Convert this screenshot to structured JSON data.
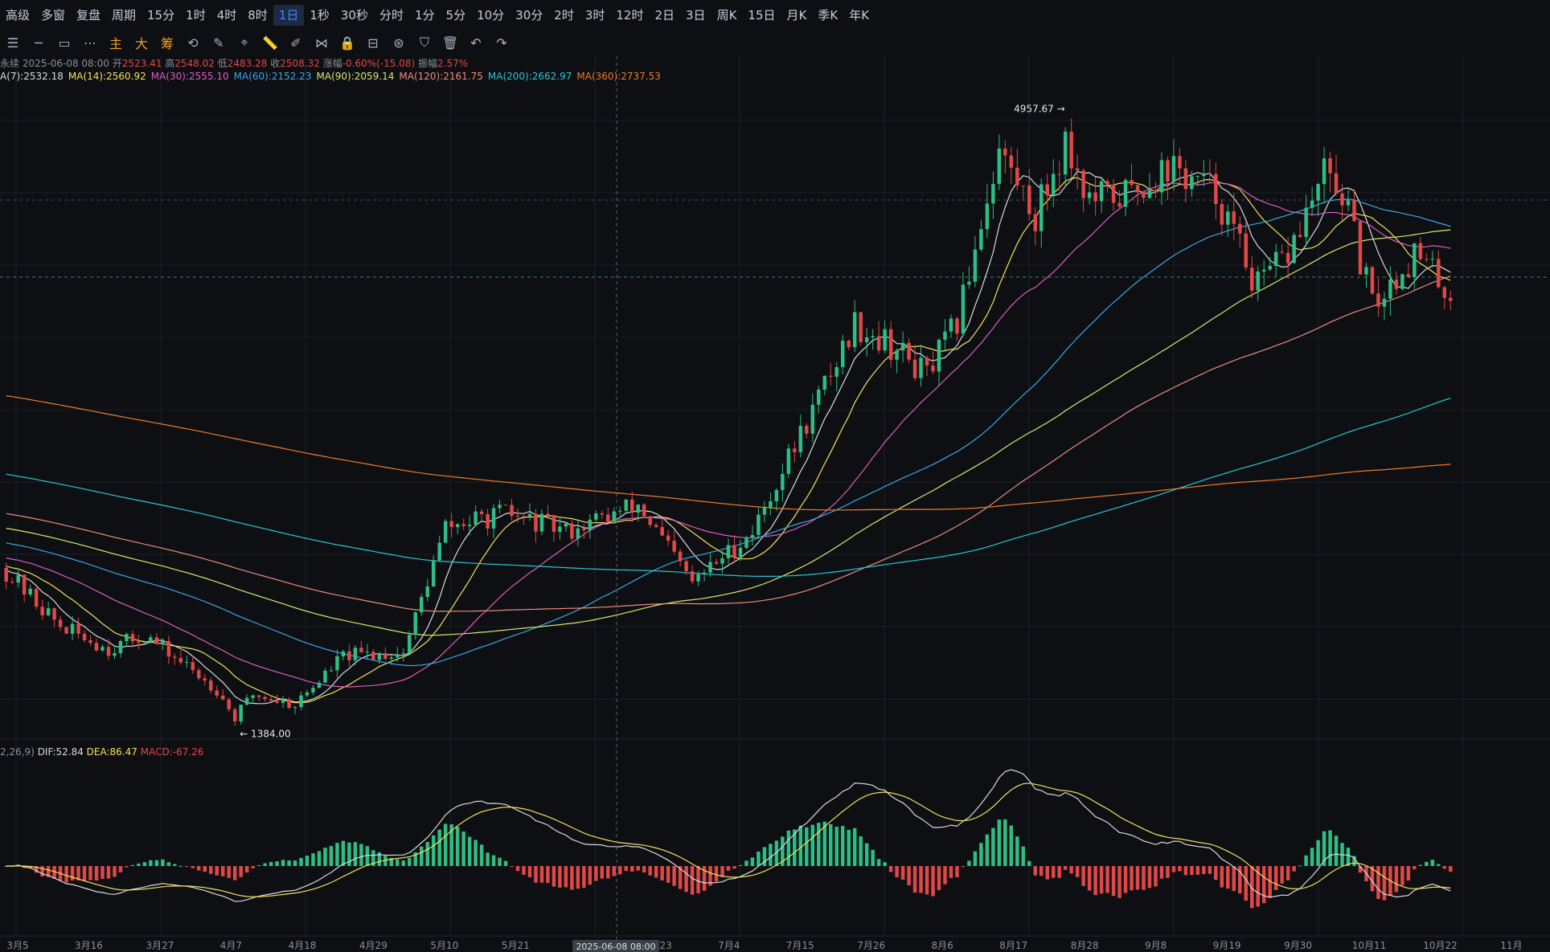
{
  "toolbar": {
    "items": [
      {
        "label": "高级"
      },
      {
        "label": "多窗"
      },
      {
        "label": "复盘"
      },
      {
        "label": "周期"
      },
      {
        "label": "15分"
      },
      {
        "label": "1时"
      },
      {
        "label": "4时"
      },
      {
        "label": "8时"
      },
      {
        "label": "1日",
        "active": true
      },
      {
        "label": "1秒"
      },
      {
        "label": "30秒"
      },
      {
        "label": "分时"
      },
      {
        "label": "1分"
      },
      {
        "label": "5分"
      },
      {
        "label": "10分"
      },
      {
        "label": "30分"
      },
      {
        "label": "2时"
      },
      {
        "label": "3时"
      },
      {
        "label": "12时"
      },
      {
        "label": "2日"
      },
      {
        "label": "3日"
      },
      {
        "label": "周K"
      },
      {
        "label": "15日"
      },
      {
        "label": "月K"
      },
      {
        "label": "季K"
      },
      {
        "label": "年K"
      }
    ],
    "drawing_tools": [
      "menu-icon",
      "line-icon",
      "rect-icon",
      "more-icon",
      "主",
      "大",
      "筹",
      "indicator-icon",
      "brush-icon",
      "crosshair-icon",
      "ruler-icon",
      "pen-icon",
      "measure-icon",
      "lock-icon",
      "screenshot-icon",
      "magnet-icon",
      "filter-icon",
      "trash-icon",
      "undo-icon",
      "redo-icon"
    ]
  },
  "ohlc_info": {
    "prefix": "永续",
    "date": "2025-06-08 08:00",
    "open_label": "开",
    "open": "2523.41",
    "high_label": "高",
    "high": "2548.02",
    "low_label": "低",
    "low": "2483.28",
    "close_label": "收",
    "close": "2508.32",
    "change_label": "涨幅",
    "change": "-0.60%(-15.08)",
    "amp_label": "振幅",
    "amp": "2.57%"
  },
  "ma_info": [
    {
      "label": "A(7):2532.18",
      "color": "#d9d9d9"
    },
    {
      "label": "MA(14):2560.92",
      "color": "#f5e15a"
    },
    {
      "label": "MA(30):2555.10",
      "color": "#e05cc4"
    },
    {
      "label": "MA(60):2152.23",
      "color": "#3aa8e8"
    },
    {
      "label": "MA(90):2059.14",
      "color": "#d8e870"
    },
    {
      "label": "MA(120):2161.75",
      "color": "#f08a7e"
    },
    {
      "label": "MA(200):2662.97",
      "color": "#28c8d8"
    },
    {
      "label": "MA(360):2737.53",
      "color": "#f07a2a"
    }
  ],
  "macd_info": {
    "prefix": "2,26,9)",
    "dif": "DIF:52.84",
    "dif_color": "#d9d9d9",
    "dea": "DEA:86.47",
    "dea_color": "#f5e15a",
    "macd": "MACD:-67.26",
    "macd_color": "#e04848"
  },
  "annotations": {
    "high": "4957.67",
    "low": "1384.00"
  },
  "crosshair_date": "2025-06-08 08:00",
  "chart_data": {
    "type": "candlestick",
    "x_axis_ticks": [
      "3月5",
      "3月16",
      "3月27",
      "4月7",
      "4月18",
      "4月29",
      "5月10",
      "5月21",
      "6月",
      "6月23",
      "7月4",
      "7月15",
      "7月26",
      "8月6",
      "8月17",
      "8月28",
      "9月8",
      "9月19",
      "9月30",
      "10月11",
      "10月22",
      "11月"
    ],
    "price_range": [
      1300,
      5100
    ],
    "colors": {
      "up": "#2ebd85",
      "down": "#e04848"
    },
    "segments": [
      {
        "days": 10,
        "from": 2300,
        "to": 1950
      },
      {
        "days": 8,
        "from": 1950,
        "to": 1820
      },
      {
        "days": 6,
        "from": 1820,
        "to": 1900
      },
      {
        "days": 12,
        "from": 1900,
        "to": 1590
      },
      {
        "days": 3,
        "from": 1590,
        "to": 1420
      },
      {
        "days": 3,
        "from": 1420,
        "to": 1560
      },
      {
        "days": 7,
        "from": 1560,
        "to": 1500
      },
      {
        "days": 8,
        "from": 1500,
        "to": 1780
      },
      {
        "days": 10,
        "from": 1780,
        "to": 1800
      },
      {
        "days": 7,
        "from": 1800,
        "to": 2520
      },
      {
        "days": 10,
        "from": 2520,
        "to": 2600
      },
      {
        "days": 10,
        "from": 2600,
        "to": 2500
      },
      {
        "days": 12,
        "from": 2500,
        "to": 2650
      },
      {
        "days": 9,
        "from": 2650,
        "to": 2200
      },
      {
        "days": 10,
        "from": 2200,
        "to": 2500
      },
      {
        "days": 10,
        "from": 2500,
        "to": 3200
      },
      {
        "days": 7,
        "from": 3200,
        "to": 3700
      },
      {
        "days": 5,
        "from": 3700,
        "to": 3600
      },
      {
        "days": 7,
        "from": 3600,
        "to": 3400
      },
      {
        "days": 5,
        "from": 3400,
        "to": 3700
      },
      {
        "days": 4,
        "from": 3700,
        "to": 4300
      },
      {
        "days": 3,
        "from": 4300,
        "to": 4700
      },
      {
        "days": 6,
        "from": 4700,
        "to": 4320
      },
      {
        "days": 5,
        "from": 4320,
        "to": 4750
      },
      {
        "days": 4,
        "from": 4750,
        "to": 4400
      },
      {
        "days": 7,
        "from": 4400,
        "to": 4450
      },
      {
        "days": 6,
        "from": 4450,
        "to": 4600
      },
      {
        "days": 8,
        "from": 4600,
        "to": 4450
      },
      {
        "days": 7,
        "from": 4450,
        "to": 3900
      },
      {
        "days": 5,
        "from": 3900,
        "to": 4100
      },
      {
        "days": 6,
        "from": 4100,
        "to": 4550
      },
      {
        "days": 3,
        "from": 4550,
        "to": 4450
      },
      {
        "days": 5,
        "from": 4450,
        "to": 3800
      },
      {
        "days": 7,
        "from": 3800,
        "to": 4100
      },
      {
        "days": 6,
        "from": 4100,
        "to": 3870
      }
    ],
    "moving_averages": [
      7,
      14,
      30,
      60,
      90,
      120,
      200,
      360
    ]
  }
}
